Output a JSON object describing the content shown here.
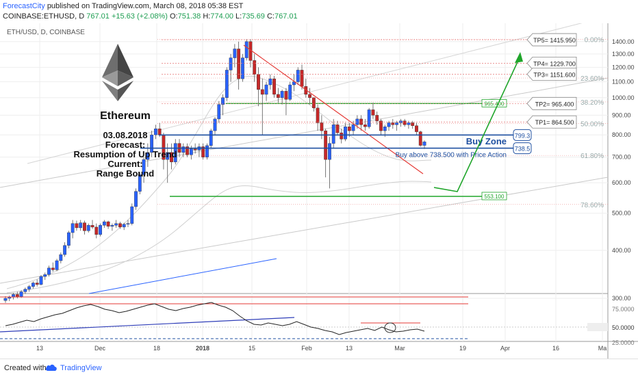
{
  "header": {
    "publisher": "ForecastCity",
    "published_text": "published on TradingView.com, March 08, 2018 05:38 EST",
    "symbol_line": "COINBASE:ETHUSD, D",
    "last": "767.01",
    "change": "+15.63 (+2.08%)",
    "o_label": "O:",
    "o": "751.38",
    "h_label": "H:",
    "h": "774.00",
    "l_label": "L:",
    "l": "735.69",
    "c_label": "C:",
    "c": "767.01"
  },
  "footer": {
    "created_with": "Created with",
    "brand": "TradingView"
  },
  "colors": {
    "bull": "#2962ff",
    "bear": "#c62828",
    "red_line": "#e53935",
    "green": "#1fa52a",
    "blue_zone": "#1e4fa0",
    "grid": "#eeeeee"
  },
  "chart_data": {
    "type": "candlestick",
    "pane_title": "ETH/USD, D, COINBASE",
    "x_ticks": [
      "13",
      "Dec",
      "18",
      "2018",
      "15",
      "Feb",
      "13",
      "Mar",
      "19",
      "Apr",
      "16",
      "Ma"
    ],
    "y_ticks": [
      300,
      400,
      500,
      600,
      700,
      800,
      900,
      1000,
      1100,
      1200,
      1300,
      1400
    ],
    "ylim": [
      300,
      1500
    ],
    "y_scale": "log",
    "grid": true,
    "fib_levels": [
      {
        "label": "0.00%",
        "price": 1420
      },
      {
        "label": "23.60%",
        "price": 1125
      },
      {
        "label": "38.20%",
        "price": 975
      },
      {
        "label": "50.00%",
        "price": 857
      },
      {
        "label": "61.80%",
        "price": 707
      },
      {
        "label": "78.60%",
        "price": 527
      }
    ],
    "targets": [
      {
        "label": "TP5= 1415.950",
        "price": 1415.95
      },
      {
        "label": "TP4= 1229.700",
        "price": 1229.7
      },
      {
        "label": "TP3= 1151.600",
        "price": 1151.6
      },
      {
        "label": "TP2= 965.400",
        "price": 965.4
      },
      {
        "label": "TP1= 864.500",
        "price": 864.5
      }
    ],
    "green_levels": [
      {
        "label": "965.400",
        "price": 965.4
      },
      {
        "label": "553.100",
        "price": 553.1
      }
    ],
    "buy_zone": {
      "label": "Buy Zone",
      "upper": "799.3",
      "lower": "738.5",
      "note": "Buy above 738.500 with Price Action"
    },
    "annotation": {
      "title": "Ethereum",
      "date": "03.08.2018",
      "line1": "Forecast:",
      "line2": "Resumption of Up Trend",
      "line3": "Current:",
      "line4": "Range Bound"
    },
    "candles": [
      [
        296,
        304,
        292,
        300
      ],
      [
        300,
        305,
        295,
        302
      ],
      [
        302,
        310,
        298,
        307
      ],
      [
        307,
        312,
        300,
        303
      ],
      [
        303,
        315,
        301,
        312
      ],
      [
        312,
        320,
        308,
        317
      ],
      [
        317,
        325,
        312,
        322
      ],
      [
        322,
        332,
        318,
        329
      ],
      [
        329,
        336,
        322,
        326
      ],
      [
        326,
        345,
        324,
        342
      ],
      [
        342,
        350,
        335,
        346
      ],
      [
        346,
        365,
        342,
        360
      ],
      [
        360,
        372,
        352,
        356
      ],
      [
        356,
        380,
        353,
        376
      ],
      [
        376,
        395,
        370,
        390
      ],
      [
        390,
        420,
        385,
        412
      ],
      [
        412,
        450,
        405,
        445
      ],
      [
        445,
        480,
        430,
        470
      ],
      [
        470,
        478,
        450,
        458
      ],
      [
        458,
        480,
        450,
        472
      ],
      [
        472,
        478,
        440,
        450
      ],
      [
        450,
        470,
        445,
        465
      ],
      [
        465,
        480,
        455,
        460
      ],
      [
        460,
        470,
        430,
        440
      ],
      [
        440,
        470,
        435,
        465
      ],
      [
        465,
        480,
        458,
        475
      ],
      [
        475,
        478,
        455,
        462
      ],
      [
        462,
        470,
        450,
        465
      ],
      [
        465,
        480,
        458,
        470
      ],
      [
        470,
        475,
        455,
        460
      ],
      [
        460,
        472,
        452,
        468
      ],
      [
        468,
        480,
        460,
        470
      ],
      [
        470,
        530,
        465,
        520
      ],
      [
        520,
        580,
        510,
        570
      ],
      [
        570,
        640,
        560,
        630
      ],
      [
        630,
        700,
        600,
        690
      ],
      [
        690,
        760,
        660,
        720
      ],
      [
        720,
        820,
        700,
        800
      ],
      [
        800,
        850,
        780,
        830
      ],
      [
        830,
        860,
        790,
        800
      ],
      [
        800,
        810,
        650,
        690
      ],
      [
        690,
        760,
        600,
        720
      ],
      [
        720,
        760,
        650,
        680
      ],
      [
        680,
        780,
        670,
        760
      ],
      [
        760,
        780,
        700,
        720
      ],
      [
        720,
        760,
        700,
        745
      ],
      [
        745,
        760,
        700,
        710
      ],
      [
        710,
        750,
        690,
        735
      ],
      [
        735,
        760,
        715,
        730
      ],
      [
        730,
        760,
        700,
        745
      ],
      [
        745,
        760,
        690,
        700
      ],
      [
        700,
        760,
        690,
        750
      ],
      [
        750,
        830,
        740,
        820
      ],
      [
        820,
        890,
        800,
        880
      ],
      [
        880,
        980,
        860,
        960
      ],
      [
        960,
        1020,
        900,
        1000
      ],
      [
        1000,
        1200,
        980,
        1180
      ],
      [
        1180,
        1300,
        1100,
        1270
      ],
      [
        1270,
        1380,
        1200,
        1340
      ],
      [
        1340,
        1400,
        1050,
        1120
      ],
      [
        1120,
        1300,
        1100,
        1270
      ],
      [
        1270,
        1420,
        1250,
        1400
      ],
      [
        1400,
        1420,
        1200,
        1250
      ],
      [
        1250,
        1300,
        1100,
        1150
      ],
      [
        1150,
        1200,
        950,
        1050
      ],
      [
        1050,
        1120,
        800,
        1020
      ],
      [
        1020,
        1100,
        980,
        1080
      ],
      [
        1080,
        1150,
        1050,
        1120
      ],
      [
        1120,
        1140,
        1000,
        1020
      ],
      [
        1020,
        1060,
        970,
        1000
      ],
      [
        1000,
        1050,
        960,
        1040
      ],
      [
        1040,
        1060,
        900,
        990
      ],
      [
        990,
        1100,
        980,
        1080
      ],
      [
        1080,
        1150,
        1040,
        1100
      ],
      [
        1100,
        1200,
        1080,
        1180
      ],
      [
        1180,
        1220,
        1050,
        1070
      ],
      [
        1070,
        1120,
        1000,
        1020
      ],
      [
        1020,
        1060,
        960,
        1000
      ],
      [
        1000,
        990,
        920,
        940
      ],
      [
        940,
        960,
        820,
        860
      ],
      [
        860,
        900,
        780,
        820
      ],
      [
        820,
        830,
        620,
        690
      ],
      [
        690,
        790,
        580,
        760
      ],
      [
        760,
        880,
        740,
        850
      ],
      [
        850,
        870,
        800,
        810
      ],
      [
        810,
        830,
        760,
        780
      ],
      [
        780,
        860,
        770,
        840
      ],
      [
        840,
        860,
        790,
        820
      ],
      [
        820,
        870,
        800,
        850
      ],
      [
        850,
        900,
        830,
        880
      ],
      [
        880,
        900,
        820,
        850
      ],
      [
        850,
        880,
        820,
        840
      ],
      [
        840,
        940,
        830,
        930
      ],
      [
        930,
        970,
        880,
        900
      ],
      [
        900,
        920,
        850,
        870
      ],
      [
        870,
        880,
        800,
        820
      ],
      [
        820,
        850,
        790,
        840
      ],
      [
        840,
        870,
        820,
        860
      ],
      [
        860,
        880,
        830,
        850
      ],
      [
        850,
        870,
        820,
        860
      ],
      [
        860,
        880,
        840,
        870
      ],
      [
        870,
        880,
        840,
        850
      ],
      [
        850,
        870,
        830,
        860
      ],
      [
        860,
        870,
        830,
        845
      ],
      [
        845,
        860,
        800,
        815
      ],
      [
        815,
        820,
        745,
        751
      ],
      [
        751,
        774,
        735,
        767
      ]
    ]
  }
}
